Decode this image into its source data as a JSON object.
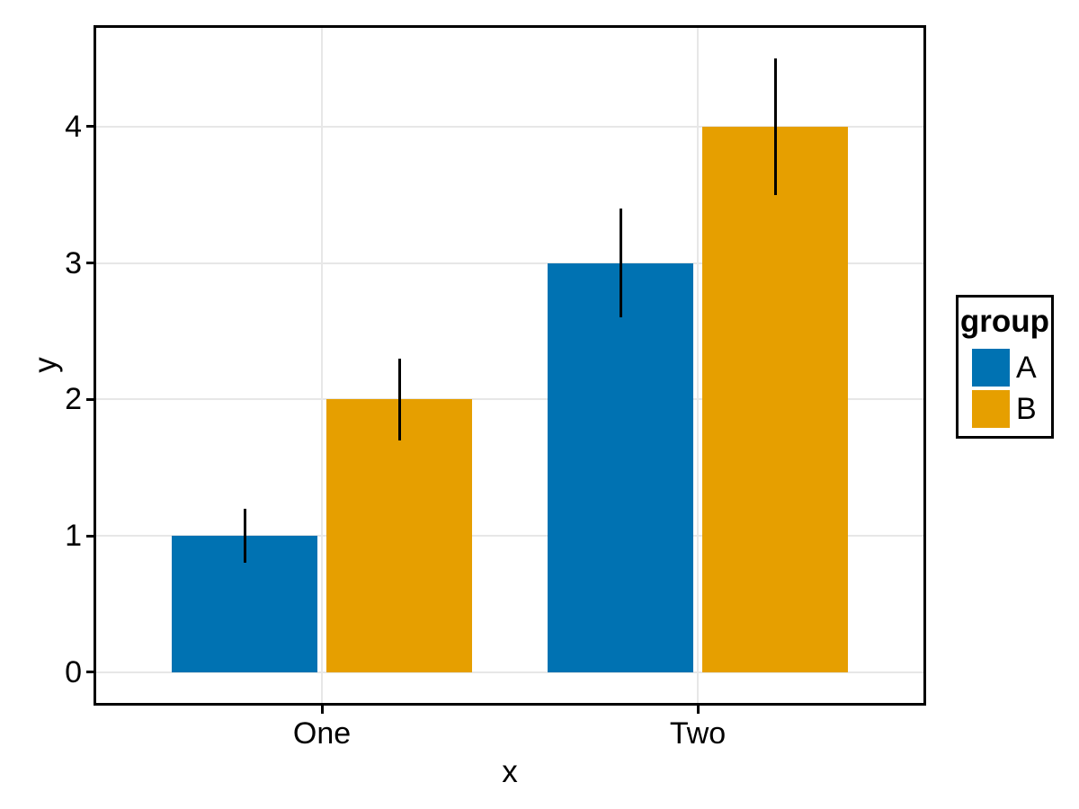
{
  "chart_data": {
    "type": "bar",
    "subtype": "grouped-with-error-bars",
    "title": "",
    "xlabel": "x",
    "ylabel": "y",
    "categories": [
      "One",
      "Two"
    ],
    "series": [
      {
        "name": "A",
        "color": "#0072B2",
        "values": [
          1,
          3
        ],
        "error_bars": [
          {
            "ymin": 0.8,
            "ymax": 1.2
          },
          {
            "ymin": 2.6,
            "ymax": 3.4
          }
        ]
      },
      {
        "name": "B",
        "color": "#E69F00",
        "values": [
          2,
          4
        ],
        "error_bars": [
          {
            "ymin": 1.7,
            "ymax": 2.3
          },
          {
            "ymin": 3.5,
            "ymax": 4.5
          }
        ]
      }
    ],
    "yticks": [
      0,
      1,
      2,
      3,
      4
    ],
    "ylim": [
      -0.225,
      4.725
    ],
    "grid": true,
    "legend": {
      "title": "group",
      "position": "right",
      "entries": [
        "A",
        "B"
      ]
    },
    "colors": {
      "gridline": "#e7e7e7",
      "panel_border": "#000000",
      "error_bar": "#000000",
      "text": "#000000",
      "background": "#ffffff"
    }
  }
}
